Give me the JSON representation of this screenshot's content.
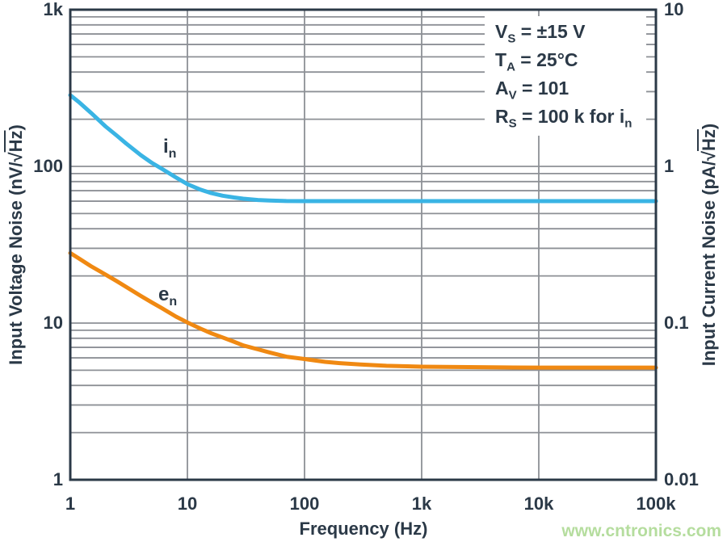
{
  "colors": {
    "in_curve": "#3ab4e4",
    "en_curve": "#f08912",
    "text": "#2b3947",
    "grid": "#8d9096",
    "frame": "#2b3947",
    "watermark": "#b5dd9e"
  },
  "axes": {
    "x": {
      "title": "Frequency (Hz)",
      "ticks": [
        "1",
        "10",
        "100",
        "1k",
        "10k",
        "100k"
      ]
    },
    "y_left": {
      "title_pre": "Input Voltage Noise (nV/√",
      "title_hz": "Hz",
      "title_post": ")",
      "ticks": [
        "1k",
        "100",
        "10",
        "1"
      ]
    },
    "y_right": {
      "title_pre": "Input Current Noise (pA/√",
      "title_hz": "Hz",
      "title_post": ")",
      "ticks": [
        "10",
        "1",
        "0.1",
        "0.01"
      ]
    }
  },
  "annotation": {
    "lines": [
      {
        "pre": "V",
        "sub": "S",
        "mid": " = ±15 V",
        "sub2": ""
      },
      {
        "pre": "T",
        "sub": "A",
        "mid": " = 25°C",
        "sub2": ""
      },
      {
        "pre": "A",
        "sub": "V",
        "mid": " = 101",
        "sub2": ""
      },
      {
        "pre": "R",
        "sub": "S",
        "mid": " = 100 k for i",
        "sub2": "n"
      }
    ]
  },
  "curve_labels": {
    "in": {
      "main": "i",
      "sub": "n"
    },
    "en": {
      "main": "e",
      "sub": "n"
    }
  },
  "watermark": "www.cntronics.com",
  "chart_data": {
    "type": "line",
    "x_scale": "log",
    "y_scale": "log",
    "xlabel": "Frequency (Hz)",
    "ylabel_left": "Input Voltage Noise (nV/√Hz)",
    "ylabel_right": "Input Current Noise (pA/√Hz)",
    "xlim": [
      1,
      100000
    ],
    "ylim_left": [
      1,
      1000
    ],
    "ylim_right": [
      0.01,
      10
    ],
    "grid": "on",
    "x_major_gridlines": [
      10,
      100,
      1000,
      10000
    ],
    "annotations": [
      "VS = ±15 V",
      "TA = 25°C",
      "AV = 101",
      "RS = 100 k for in"
    ],
    "series": [
      {
        "name": "in",
        "axis": "right",
        "unit": "pA/√Hz",
        "color": "#3ab4e4",
        "flat_value": 0.6,
        "points": [
          [
            1,
            2.85
          ],
          [
            1.2,
            2.55
          ],
          [
            1.5,
            2.2
          ],
          [
            2,
            1.8
          ],
          [
            2.5,
            1.57
          ],
          [
            3,
            1.4
          ],
          [
            4,
            1.18
          ],
          [
            5,
            1.05
          ],
          [
            6,
            0.97
          ],
          [
            8,
            0.85
          ],
          [
            10,
            0.77
          ],
          [
            13,
            0.71
          ],
          [
            16,
            0.675
          ],
          [
            20,
            0.65
          ],
          [
            25,
            0.633
          ],
          [
            30,
            0.622
          ],
          [
            40,
            0.61
          ],
          [
            50,
            0.605
          ],
          [
            70,
            0.601
          ],
          [
            100,
            0.6
          ],
          [
            200,
            0.6
          ],
          [
            500,
            0.6
          ],
          [
            1000,
            0.6
          ],
          [
            10000,
            0.6
          ],
          [
            100000,
            0.6
          ]
        ]
      },
      {
        "name": "en",
        "axis": "left",
        "unit": "nV/√Hz",
        "color": "#f08912",
        "flat_value": 5.2,
        "points": [
          [
            1,
            28
          ],
          [
            1.2,
            25.7
          ],
          [
            1.5,
            23.1
          ],
          [
            2,
            20.4
          ],
          [
            2.5,
            18.5
          ],
          [
            3,
            17
          ],
          [
            4,
            14.9
          ],
          [
            5,
            13.5
          ],
          [
            6,
            12.5
          ],
          [
            8,
            11
          ],
          [
            10,
            10.1
          ],
          [
            13,
            9.2
          ],
          [
            16,
            8.6
          ],
          [
            20,
            8.1
          ],
          [
            25,
            7.6
          ],
          [
            30,
            7.2
          ],
          [
            40,
            6.8
          ],
          [
            50,
            6.5
          ],
          [
            70,
            6.1
          ],
          [
            100,
            5.9
          ],
          [
            150,
            5.66
          ],
          [
            200,
            5.55
          ],
          [
            300,
            5.44
          ],
          [
            500,
            5.34
          ],
          [
            1000,
            5.27
          ],
          [
            2000,
            5.24
          ],
          [
            5000,
            5.21
          ],
          [
            10000,
            5.2
          ],
          [
            100000,
            5.2
          ]
        ]
      }
    ]
  }
}
